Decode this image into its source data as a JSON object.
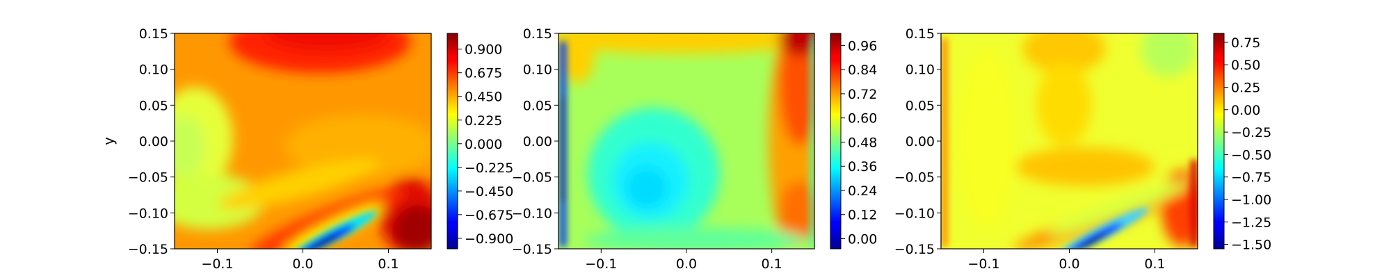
{
  "chart_data": [
    {
      "type": "heatmap",
      "title": "",
      "xlabel": "",
      "ylabel": "y",
      "xlim": [
        -0.15,
        0.15
      ],
      "ylim": [
        -0.15,
        0.15
      ],
      "xticks": [
        "−0.1",
        "0.0",
        "0.1"
      ],
      "yticks": [
        "0.15",
        "0.10",
        "0.05",
        "0.00",
        "−0.05",
        "−0.10",
        "−0.15"
      ],
      "colormap": "jet",
      "colorbar": {
        "range": [
          -1.0,
          1.05
        ],
        "ticks": [
          "0.900",
          "0.675",
          "0.450",
          "0.225",
          "0.000",
          "−0.225",
          "−0.450",
          "−0.675",
          "−0.900"
        ],
        "tick_values": [
          0.9,
          0.675,
          0.45,
          0.225,
          0.0,
          -0.225,
          -0.45,
          -0.675,
          -0.9
        ]
      }
    },
    {
      "type": "heatmap",
      "title": "",
      "xlabel": "",
      "ylabel": "",
      "xlim": [
        -0.15,
        0.15
      ],
      "ylim": [
        -0.15,
        0.15
      ],
      "xticks": [
        "−0.1",
        "0.0",
        "0.1"
      ],
      "yticks": [
        "0.15",
        "0.10",
        "0.05",
        "0.00",
        "−0.05",
        "−0.10",
        "−0.15"
      ],
      "colormap": "jet",
      "colorbar": {
        "range": [
          -0.05,
          1.02
        ],
        "ticks": [
          "0.96",
          "0.84",
          "0.72",
          "0.60",
          "0.48",
          "0.36",
          "0.24",
          "0.12",
          "0.00"
        ],
        "tick_values": [
          0.96,
          0.84,
          0.72,
          0.6,
          0.48,
          0.36,
          0.24,
          0.12,
          0.0
        ]
      }
    },
    {
      "type": "heatmap",
      "title": "",
      "xlabel": "",
      "ylabel": "",
      "xlim": [
        -0.15,
        0.15
      ],
      "ylim": [
        -0.15,
        0.15
      ],
      "xticks": [
        "−0.1",
        "0.0",
        "0.1"
      ],
      "yticks": [
        "0.15",
        "0.10",
        "0.05",
        "0.00",
        "−0.05",
        "−0.10",
        "−0.15"
      ],
      "colormap": "jet",
      "colorbar": {
        "range": [
          -1.55,
          0.85
        ],
        "ticks": [
          "0.75",
          "0.50",
          "0.25",
          "0.00",
          "−0.25",
          "−0.50",
          "−0.75",
          "−1.00",
          "−1.25",
          "−1.50"
        ],
        "tick_values": [
          0.75,
          0.5,
          0.25,
          0.0,
          -0.25,
          -0.5,
          -0.75,
          -1.0,
          -1.25,
          -1.5
        ]
      }
    }
  ]
}
